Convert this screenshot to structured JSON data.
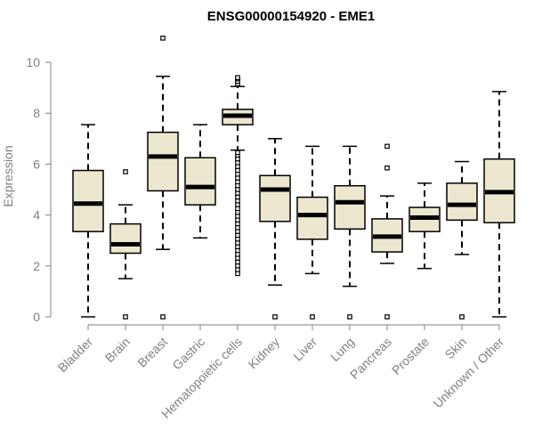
{
  "chart_data": {
    "type": "boxplot",
    "title": "ENSG00000154920 - EME1",
    "xlabel": "",
    "ylabel": "Expression",
    "ylim": [
      0,
      10
    ],
    "yticks": [
      0,
      2,
      4,
      6,
      8,
      10
    ],
    "box_fill": "#ede7cf",
    "box_stroke": "#000000",
    "axis_color": "#808080",
    "categories": [
      "Bladder",
      "Brain",
      "Breast",
      "Gastric",
      "Hematopoietic cells",
      "Kidney",
      "Liver",
      "Lung",
      "Pancreas",
      "Prostate",
      "Skin",
      "Unknown / Other"
    ],
    "boxes": [
      {
        "whisker_low": 0.0,
        "q1": 3.35,
        "median": 4.45,
        "q3": 5.75,
        "whisker_high": 7.55,
        "outliers": []
      },
      {
        "whisker_low": 1.5,
        "q1": 2.5,
        "median": 2.85,
        "q3": 3.65,
        "whisker_high": 4.4,
        "outliers": [
          0.0,
          5.7
        ]
      },
      {
        "whisker_low": 2.65,
        "q1": 4.95,
        "median": 6.3,
        "q3": 7.25,
        "whisker_high": 9.45,
        "outliers": [
          0.0,
          10.95
        ]
      },
      {
        "whisker_low": 3.1,
        "q1": 4.4,
        "median": 5.1,
        "q3": 6.25,
        "whisker_high": 7.55,
        "outliers": []
      },
      {
        "whisker_low": 6.55,
        "q1": 7.55,
        "median": 7.9,
        "q3": 8.15,
        "whisker_high": 9.05,
        "outliers": [
          9.15,
          9.25,
          9.35,
          9.4,
          6.45,
          6.3,
          6.2,
          6.05,
          5.9,
          5.75,
          5.6,
          5.45,
          5.3,
          5.15,
          5.0,
          4.85,
          4.7,
          4.55,
          4.4,
          4.25,
          4.1,
          3.95,
          3.8,
          3.65,
          3.5,
          3.35,
          3.2,
          3.05,
          2.9,
          2.75,
          2.6,
          2.45,
          2.3,
          2.15,
          2.0,
          1.85,
          1.7
        ]
      },
      {
        "whisker_low": 1.25,
        "q1": 3.75,
        "median": 5.0,
        "q3": 5.55,
        "whisker_high": 7.0,
        "outliers": [
          0.0
        ]
      },
      {
        "whisker_low": 1.7,
        "q1": 3.05,
        "median": 4.0,
        "q3": 4.7,
        "whisker_high": 6.7,
        "outliers": [
          0.0
        ]
      },
      {
        "whisker_low": 1.2,
        "q1": 3.45,
        "median": 4.5,
        "q3": 5.15,
        "whisker_high": 6.7,
        "outliers": [
          0.0
        ]
      },
      {
        "whisker_low": 2.1,
        "q1": 2.55,
        "median": 3.15,
        "q3": 3.85,
        "whisker_high": 4.75,
        "outliers": [
          0.0,
          5.85,
          6.7
        ]
      },
      {
        "whisker_low": 1.9,
        "q1": 3.35,
        "median": 3.9,
        "q3": 4.3,
        "whisker_high": 5.25,
        "outliers": []
      },
      {
        "whisker_low": 2.45,
        "q1": 3.8,
        "median": 4.4,
        "q3": 5.25,
        "whisker_high": 6.1,
        "outliers": [
          0.0
        ]
      },
      {
        "whisker_low": 0.0,
        "q1": 3.7,
        "median": 4.9,
        "q3": 6.2,
        "whisker_high": 8.85,
        "outliers": []
      }
    ]
  }
}
